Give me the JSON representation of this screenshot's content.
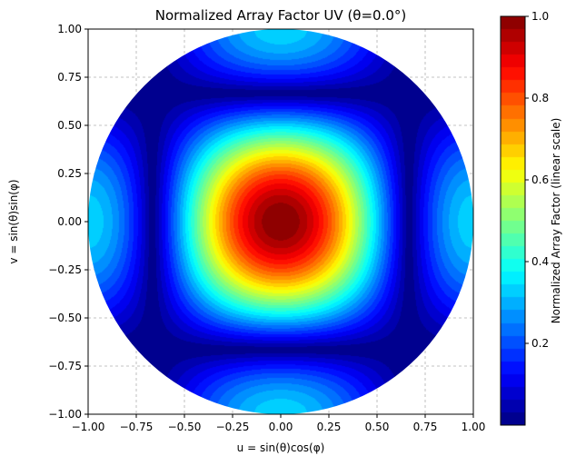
{
  "chart_data": {
    "type": "heatmap",
    "title": "Normalized Array Factor UV (θ=0.0°)",
    "xlabel": "u = sin(θ)cos(φ)",
    "ylabel": "v = sin(θ)sin(φ)",
    "xlim": [
      -1.0,
      1.0
    ],
    "ylim": [
      -1.0,
      1.0
    ],
    "x_ticks": [
      "−1.00",
      "−0.75",
      "−0.50",
      "−0.25",
      "0.00",
      "0.25",
      "0.50",
      "0.75",
      "1.00"
    ],
    "y_ticks": [
      "1.00",
      "0.75",
      "0.50",
      "0.25",
      "0.00",
      "−0.25",
      "−0.50",
      "−0.75",
      "−1.00"
    ],
    "grid": true,
    "colormap": "jet",
    "region": "unit circle u²+v²≤1",
    "peak": {
      "u": 0.0,
      "v": 0.0,
      "value": 1.0
    },
    "nulls": {
      "u": [
        -0.5,
        0.5
      ],
      "v": [
        -0.5,
        0.5
      ]
    },
    "sidelobe_peak_value": 0.22,
    "colorbar": {
      "label": "Normalized Array Factor (linear scale)",
      "range": [
        0.0,
        1.0
      ],
      "ticks": [
        "0.2",
        "0.4",
        "0.6",
        "0.8",
        "1.0"
      ]
    }
  }
}
